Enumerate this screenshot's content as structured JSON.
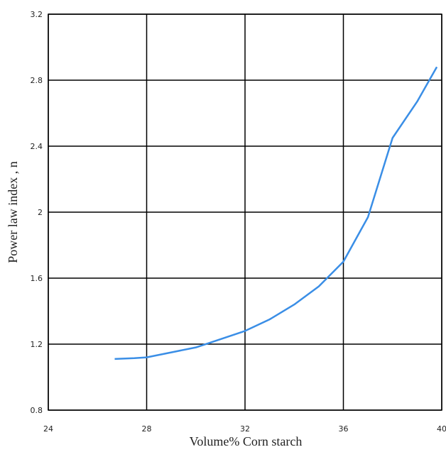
{
  "chart_data": {
    "type": "line",
    "x_label": "Volume% Corn starch",
    "y_label": "Power law index , n",
    "x": [
      26.7,
      27.5,
      28,
      29,
      30,
      31,
      32,
      33,
      34,
      35,
      36,
      37,
      38,
      39,
      39.8
    ],
    "series": [
      {
        "color": "#3a8ee6",
        "values": [
          1.11,
          1.115,
          1.12,
          1.15,
          1.18,
          1.23,
          1.28,
          1.35,
          1.44,
          1.55,
          1.7,
          1.97,
          2.45,
          2.67,
          2.88
        ]
      }
    ],
    "xlim": [
      24,
      40
    ],
    "xticks": [
      24,
      28,
      32,
      36,
      40
    ],
    "ylim": [
      0.8,
      3.2
    ],
    "yticks": [
      0.8,
      1.2,
      1.6,
      2,
      2.4,
      2.8,
      3.2
    ],
    "grid": true
  }
}
